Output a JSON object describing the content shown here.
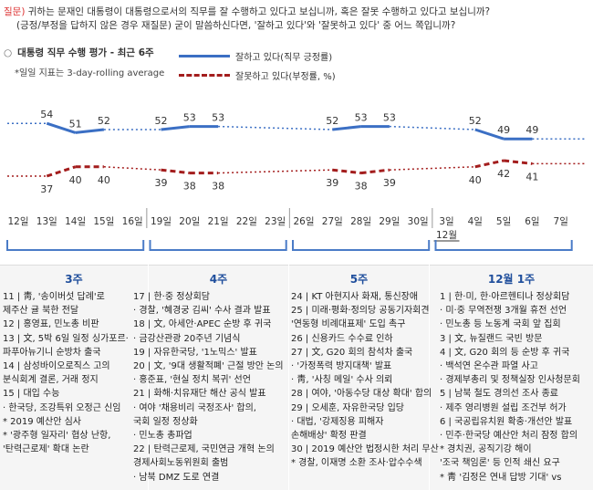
{
  "question": {
    "label": "질문)",
    "line1": "귀하는 문재인 대통령이 대통령으로서의 직무를 잘 수행하고 있다고 보십니까, 혹은 잘못 수행하고 있다고 보십니까?",
    "line2": "(긍정/부정을 답하지 않은 경우 재질문) 굳이 말씀하신다면, '잘하고 있다'와 '잘못하고 있다' 중 어느 쪽입니까?"
  },
  "chart_header": {
    "bullet": "○",
    "title": "대통령 직무 수행 평가 - 최근 6주",
    "note": "*일일 지표는 3-day-rolling average"
  },
  "colors": {
    "positive": "#3b6fc4",
    "negative": "#a31d1d",
    "week_title": "#1f4e9c",
    "bracket": "#4a7bc7"
  },
  "chart_data": {
    "type": "line",
    "x": [
      "12일",
      "13일",
      "14일",
      "15일",
      "16일",
      "19일",
      "20일",
      "21일",
      "22일",
      "23일",
      "26일",
      "27일",
      "28일",
      "29일",
      "30일",
      "3일",
      "4일",
      "5일",
      "6일",
      "7일"
    ],
    "month_label": "12월",
    "series": [
      {
        "name": "잘하고 있다(직무 긍정률)",
        "line_style": "solid",
        "values": [
          null,
          54,
          51,
          52,
          null,
          52,
          53,
          53,
          null,
          null,
          null,
          52,
          53,
          53,
          null,
          null,
          52,
          49,
          49,
          null
        ],
        "labels": [
          "",
          "54",
          "51",
          "52",
          "",
          "52",
          "53",
          "53",
          "",
          "",
          "",
          "52",
          "53",
          "53",
          "",
          "",
          "52",
          "49",
          "49",
          ""
        ]
      },
      {
        "name": "잘못하고 있다(부정률, %)",
        "line_style": "dashed",
        "values": [
          null,
          37,
          40,
          40,
          null,
          39,
          38,
          38,
          null,
          null,
          null,
          39,
          38,
          39,
          null,
          null,
          40,
          42,
          41,
          null
        ],
        "labels": [
          "",
          "37",
          "40",
          "40",
          "",
          "39",
          "38",
          "38",
          "",
          "",
          "",
          "39",
          "38",
          "39",
          "",
          "",
          "40",
          "42",
          "41",
          ""
        ]
      }
    ]
  },
  "weeks": [
    {
      "title": "3주",
      "events": [
        "11 | 靑, '송이버섯 답례'로",
        "     제주산 귤 북한 전달",
        "12 | 홍영표, 민노총 비판",
        "13 | 文, 5박 6일 일정 싱가포르·",
        "     파푸아뉴기니 순방차 출국",
        "14 | 삼성바이오로직스 고의",
        "     분식회계 결론, 거래 정지",
        "15 | 대입 수능",
        "   · 한국당, 조강특위 오정근 신임",
        "   * 2019 예산안 심사",
        "   * '광주형 일자리' 협상 난항,",
        "     '탄력근로제' 확대 논란"
      ]
    },
    {
      "title": "4주",
      "events": [
        "17 | 한·중 정상회담",
        "   · 경찰, '혜경궁 김씨' 수사 결과 발표",
        "18 | 文, 아세안·APEC 순방 후 귀국",
        "   · 금강산관광 20주년 기념식",
        "19 | 자유한국당, '1노믹스' 발표",
        "20 | 文, '9대 생활적폐' 근절 방안 논의",
        "   · 홍준표, '현실 정치 복귀' 선언",
        "21 | 화해·치유재단 해산 공식 발표",
        "   · 여야 '채용비리 국정조사' 합의,",
        "     국회 일정 정상화",
        "   · 민노총 총파업",
        "22 | 탄력근로제, 국민연금 개혁 논의",
        "     경제사회노동위원회 출범",
        "   · 남북 DMZ 도로 연결"
      ]
    },
    {
      "title": "5주",
      "events": [
        "24 | KT 아현지사 화재, 통신장애",
        "25 | 미래·평화·정의당 공동기자회견",
        "     '연동형 비례대표제' 도입 촉구",
        "26 | 신용카드 수수료 인하",
        "27 | 文, G20 회의 참석차 출국",
        "   · '가정폭력 방지대책' 발표",
        "   · 靑, '사칭 메일' 수사 의뢰",
        "28 | 여야, '아동수당 대상 확대' 합의",
        "29 | 오세훈, 자유한국당 입당",
        "   · 대법, '강제징용 피해자",
        "     손해배상' 확정 판결",
        "30 | 2019 예산안 법정시한 처리 무산",
        "   * 경찰, 이재명 소환 조사·압수수색"
      ]
    },
    {
      "title": "12월 1주",
      "events": [
        "1 | 한·미, 한·아르헨티나 정상회담",
        "  · 미·중 무역전쟁 3개월 휴전 선언",
        "  · 민노총 등 노동계 국회 앞 집회",
        "3 | 文, 뉴질랜드 국빈 방문",
        "4 | 文, G20 회의 등 순방 후 귀국",
        "  · 백석연 온수관 파열 사고",
        "  · 경제부총리 및 정책실장 인사청문회",
        "5 | 남북 철도 경의선 조사 종료",
        "  · 제주 영리병원 설립 조건부 허가",
        "6 | 국공립유치원 확충·개선안 발표",
        "  · 민주·한국당 예산안 처리 잠정 합의",
        "  * 경치권, 공직기강 해이",
        "    '조국 책임론' 등 인적 쇄신 요구",
        "  * 靑 '김정은 연내 답방 기대' vs"
      ]
    }
  ]
}
